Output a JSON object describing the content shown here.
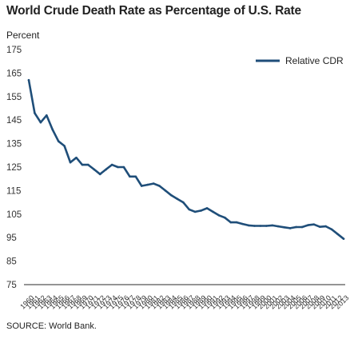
{
  "title": "World Crude Death Rate as Percentage of U.S. Rate",
  "unit_label": "Percent",
  "source": "SOURCE: World Bank.",
  "chart_data": {
    "type": "line",
    "title": "World Crude Death Rate as Percentage of U.S. Rate",
    "ylabel": "Percent",
    "xlabel": "",
    "ylim": [
      75,
      175
    ],
    "yticks": [
      75,
      85,
      95,
      105,
      115,
      125,
      135,
      145,
      155,
      165,
      175
    ],
    "grid": false,
    "legend_position": "top-right",
    "x": [
      1960,
      1961,
      1962,
      1963,
      1964,
      1965,
      1966,
      1967,
      1968,
      1969,
      1970,
      1971,
      1972,
      1973,
      1974,
      1975,
      1976,
      1977,
      1978,
      1979,
      1980,
      1981,
      1982,
      1983,
      1984,
      1985,
      1986,
      1987,
      1988,
      1989,
      1990,
      1991,
      1992,
      1993,
      1994,
      1995,
      1996,
      1997,
      1998,
      1999,
      2000,
      2001,
      2002,
      2003,
      2004,
      2005,
      2006,
      2007,
      2008,
      2009,
      2010,
      2011,
      2012,
      2013
    ],
    "series": [
      {
        "name": "Relative CDR",
        "color": "#1f4e79",
        "values": [
          162,
          148,
          144,
          147,
          141,
          136,
          134,
          127,
          129,
          126,
          126,
          124,
          122,
          124,
          126,
          125,
          125,
          121,
          121,
          117,
          117.5,
          118,
          117,
          115,
          113,
          111.5,
          110,
          107,
          106,
          106.5,
          107.5,
          106,
          104.5,
          103.5,
          101.5,
          101.5,
          100.8,
          100.2,
          100,
          100,
          100,
          100.2,
          99.8,
          99.4,
          99,
          99.5,
          99.5,
          100.3,
          100.6,
          99.6,
          99.8,
          98.5,
          96.5,
          94.5
        ]
      }
    ]
  }
}
